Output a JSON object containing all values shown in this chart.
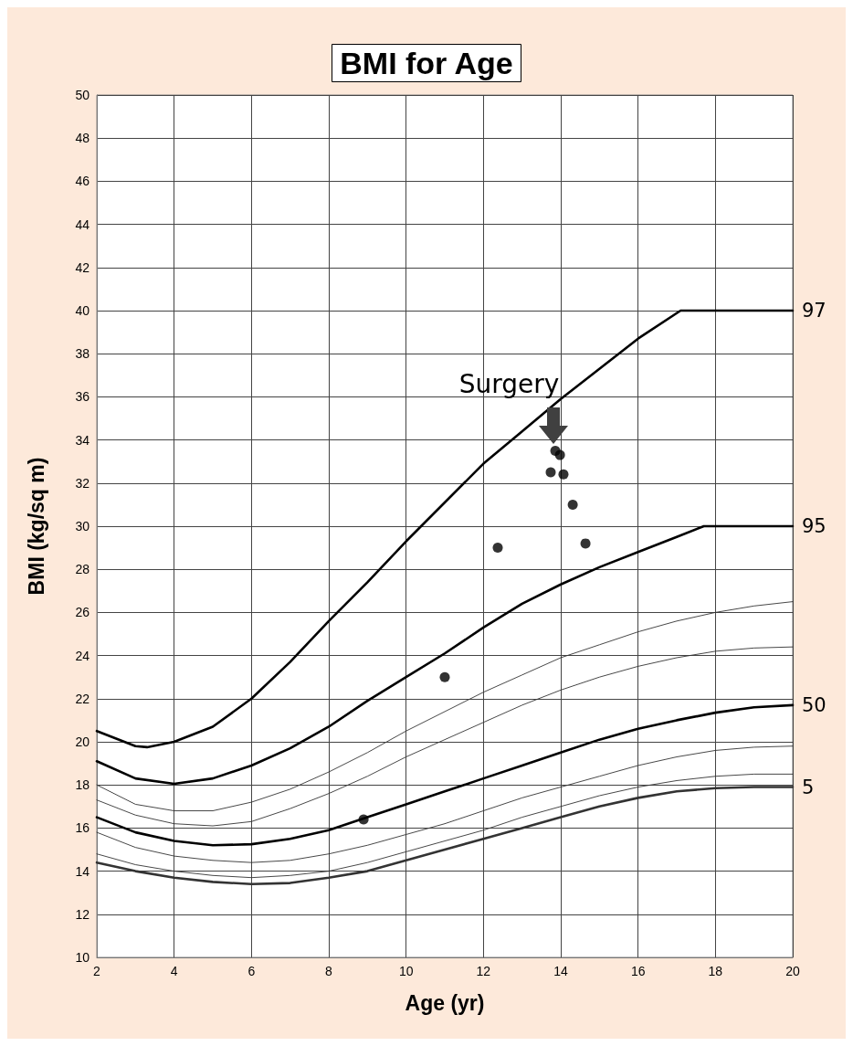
{
  "chart_data": {
    "type": "line",
    "title": "BMI for Age",
    "xlabel": "Age (yr)",
    "ylabel": "BMI (kg/sq m)",
    "xlim": [
      2,
      20
    ],
    "xticks": [
      2,
      4,
      6,
      8,
      10,
      12,
      14,
      16,
      18,
      20
    ],
    "ylim": [
      10,
      50
    ],
    "yticks": [
      10,
      12,
      14,
      16,
      18,
      20,
      22,
      24,
      26,
      28,
      30,
      32,
      34,
      36,
      38,
      40,
      42,
      44,
      46,
      48,
      50
    ],
    "grid": true,
    "marker": "none",
    "series": [
      {
        "name": "97",
        "color": "#000000",
        "x": [
          2,
          3,
          3.3,
          4,
          5,
          6,
          7,
          8,
          9,
          10,
          11,
          12,
          13,
          14,
          15,
          16,
          17.1,
          20
        ],
        "values": [
          20.5,
          19.8,
          19.75,
          20.0,
          20.7,
          22.0,
          23.7,
          25.6,
          27.4,
          29.3,
          31.1,
          32.9,
          34.4,
          35.9,
          37.3,
          38.7,
          40.0,
          40.0
        ]
      },
      {
        "name": "95",
        "color": "#000000",
        "x": [
          2,
          3,
          4,
          5,
          6,
          7,
          8,
          9,
          10,
          11,
          12,
          13,
          14,
          15,
          16,
          17,
          17.7,
          20
        ],
        "values": [
          19.1,
          18.3,
          18.05,
          18.3,
          18.9,
          19.7,
          20.7,
          21.9,
          23.0,
          24.1,
          25.3,
          26.4,
          27.3,
          28.1,
          28.8,
          29.5,
          30.0,
          30.0
        ]
      },
      {
        "color": "#333333",
        "x": [
          2,
          3,
          4,
          5,
          6,
          7,
          8,
          9,
          10,
          11,
          12,
          13,
          14,
          15,
          16,
          17,
          18,
          19,
          20
        ],
        "values": [
          18.0,
          17.1,
          16.8,
          16.8,
          17.2,
          17.8,
          18.6,
          19.5,
          20.5,
          21.4,
          22.3,
          23.1,
          23.9,
          24.5,
          25.1,
          25.6,
          26.0,
          26.3,
          26.5
        ]
      },
      {
        "color": "#333333",
        "x": [
          2,
          3,
          4,
          5,
          6,
          7,
          8,
          9,
          10,
          11,
          12,
          13,
          14,
          15,
          16,
          17,
          18,
          19,
          20
        ],
        "values": [
          17.3,
          16.6,
          16.2,
          16.1,
          16.3,
          16.9,
          17.6,
          18.4,
          19.3,
          20.1,
          20.9,
          21.7,
          22.4,
          23.0,
          23.5,
          23.9,
          24.2,
          24.35,
          24.4
        ]
      },
      {
        "name": "50",
        "color": "#000000",
        "x": [
          2,
          3,
          4,
          5,
          6,
          7,
          8,
          9,
          10,
          11,
          12,
          13,
          14,
          15,
          16,
          17,
          18,
          19,
          20
        ],
        "values": [
          16.5,
          15.8,
          15.4,
          15.2,
          15.25,
          15.5,
          15.9,
          16.5,
          17.1,
          17.7,
          18.3,
          18.9,
          19.5,
          20.1,
          20.6,
          21.0,
          21.35,
          21.6,
          21.7
        ]
      },
      {
        "color": "#333333",
        "x": [
          2,
          3,
          4,
          5,
          6,
          7,
          8,
          9,
          10,
          11,
          12,
          13,
          14,
          15,
          16,
          17,
          18,
          19,
          20
        ],
        "values": [
          15.8,
          15.1,
          14.7,
          14.5,
          14.4,
          14.5,
          14.8,
          15.2,
          15.7,
          16.2,
          16.8,
          17.4,
          17.9,
          18.4,
          18.9,
          19.3,
          19.6,
          19.75,
          19.8
        ]
      },
      {
        "color": "#333333",
        "x": [
          2,
          3,
          4,
          5,
          6,
          7,
          8,
          9,
          10,
          11,
          12,
          13,
          14,
          15,
          16,
          17,
          18,
          19,
          20
        ],
        "values": [
          14.8,
          14.3,
          14.0,
          13.8,
          13.7,
          13.8,
          14.0,
          14.4,
          14.9,
          15.4,
          15.9,
          16.5,
          17.0,
          17.5,
          17.9,
          18.2,
          18.4,
          18.5,
          18.5
        ]
      },
      {
        "name": "5",
        "color": "#333333",
        "x": [
          2,
          3,
          4,
          5,
          6,
          7,
          8,
          9,
          10,
          11,
          12,
          13,
          14,
          15,
          16,
          17,
          18,
          19,
          20
        ],
        "values": [
          14.4,
          14.0,
          13.7,
          13.5,
          13.4,
          13.45,
          13.7,
          14.0,
          14.5,
          15.0,
          15.5,
          16.0,
          16.5,
          17.0,
          17.4,
          17.7,
          17.85,
          17.9,
          17.9
        ]
      },
      {
        "type": "scatter",
        "marker": "circle",
        "color": "#000000",
        "x": [
          8.9,
          11.0,
          12.37,
          13.74,
          13.86,
          13.98,
          14.07,
          14.31,
          14.64
        ],
        "values": [
          16.4,
          23.0,
          29.0,
          32.5,
          33.5,
          33.3,
          32.4,
          31.0,
          29.2
        ]
      }
    ],
    "annotations": [
      {
        "text": "Surgery",
        "x": 13.8,
        "y": 33.8
      }
    ]
  }
}
